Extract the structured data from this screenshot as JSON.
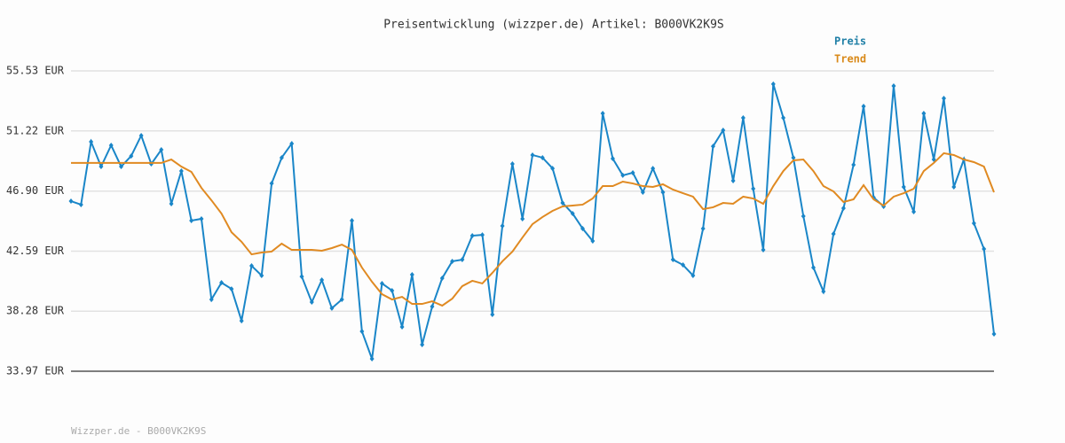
{
  "chart_data": {
    "type": "line",
    "title": "Preisentwicklung (wizzper.de) Artikel: B000VK2K9S",
    "footer": "Wizzper.de - B000VK2K9S",
    "categories": [
      null,
      null,
      null,
      null,
      null,
      null,
      null,
      null,
      null,
      null,
      null,
      null,
      null,
      null,
      null,
      null,
      null,
      null,
      null,
      null,
      null,
      null,
      null,
      null,
      null,
      null,
      null,
      null,
      null,
      null,
      null,
      null,
      null,
      null,
      null,
      null,
      null,
      null,
      null,
      null,
      null,
      null,
      null,
      null,
      null,
      null,
      null,
      null,
      null,
      null,
      null,
      null,
      null,
      null,
      null,
      null,
      null,
      null,
      null,
      null,
      null,
      null,
      null,
      null,
      null,
      null,
      null,
      null,
      null,
      null,
      null,
      null,
      null,
      null,
      null,
      null,
      null,
      null,
      null,
      null,
      null,
      null,
      null,
      null,
      null,
      null,
      null,
      null,
      null,
      null,
      null,
      null,
      null
    ],
    "series": [
      {
        "name": "Preis",
        "color": "#1a86c8",
        "legend_color": "#1f7fa6",
        "markers": true,
        "values": [
          46.18,
          45.93,
          50.44,
          48.66,
          50.19,
          48.66,
          49.42,
          50.89,
          48.85,
          49.87,
          45.99,
          48.34,
          44.78,
          44.91,
          39.12,
          40.33,
          39.88,
          37.59,
          41.54,
          40.84,
          47.45,
          49.3,
          50.31,
          40.77,
          38.93,
          40.52,
          38.49,
          39.12,
          44.78,
          36.83,
          34.86,
          40.27,
          39.76,
          37.15,
          40.9,
          35.88,
          38.61,
          40.65,
          41.86,
          41.98,
          43.7,
          43.76,
          38.04,
          44.4,
          48.85,
          44.91,
          49.49,
          49.3,
          48.53,
          46.05,
          45.29,
          44.21,
          43.32,
          52.48,
          49.23,
          48.03,
          48.22,
          46.82,
          48.53,
          46.82,
          41.98,
          41.6,
          40.84,
          44.21,
          50.12,
          51.27,
          47.64,
          52.16,
          47.07,
          42.68,
          54.58,
          52.16,
          49.3,
          45.1,
          41.41,
          39.69,
          43.83,
          45.67,
          48.79,
          52.99,
          46.44,
          45.8,
          54.45,
          47.2,
          45.42,
          52.48,
          49.17,
          53.56,
          47.2,
          49.17,
          44.59,
          42.75,
          36.64
        ]
      },
      {
        "name": "Trend",
        "color": "#e08a22",
        "legend_color": "#d98a1a",
        "markers": false,
        "values": [
          48.92,
          48.92,
          48.92,
          48.92,
          48.92,
          48.92,
          48.92,
          48.92,
          48.92,
          48.92,
          49.17,
          48.66,
          48.28,
          47.13,
          46.24,
          45.29,
          43.95,
          43.26,
          42.36,
          42.49,
          42.56,
          43.13,
          42.68,
          42.68,
          42.68,
          42.62,
          42.81,
          43.06,
          42.68,
          41.41,
          40.39,
          39.5,
          39.12,
          39.31,
          38.8,
          38.8,
          38.99,
          38.68,
          39.18,
          40.08,
          40.46,
          40.27,
          41.03,
          41.86,
          42.56,
          43.57,
          44.53,
          45.04,
          45.48,
          45.8,
          45.86,
          45.93,
          46.37,
          47.26,
          47.26,
          47.58,
          47.45,
          47.26,
          47.2,
          47.39,
          47.01,
          46.75,
          46.5,
          45.61,
          45.74,
          46.05,
          45.99,
          46.5,
          46.37,
          45.99,
          47.26,
          48.34,
          49.11,
          49.17,
          48.34,
          47.26,
          46.88,
          46.12,
          46.31,
          47.33,
          46.31,
          45.86,
          46.5,
          46.75,
          47.07,
          48.34,
          48.92,
          49.62,
          49.49,
          49.17,
          48.98,
          48.66,
          46.82
        ]
      }
    ],
    "ylim": [
      33.97,
      55.53
    ],
    "yticks": [
      {
        "value": 33.97,
        "label": "33.97 EUR"
      },
      {
        "value": 38.28,
        "label": "38.28 EUR"
      },
      {
        "value": 42.59,
        "label": "42.59 EUR"
      },
      {
        "value": 46.9,
        "label": "46.90 EUR"
      },
      {
        "value": 51.22,
        "label": "51.22 EUR"
      },
      {
        "value": 55.53,
        "label": "55.53 EUR"
      }
    ],
    "grid": true
  }
}
